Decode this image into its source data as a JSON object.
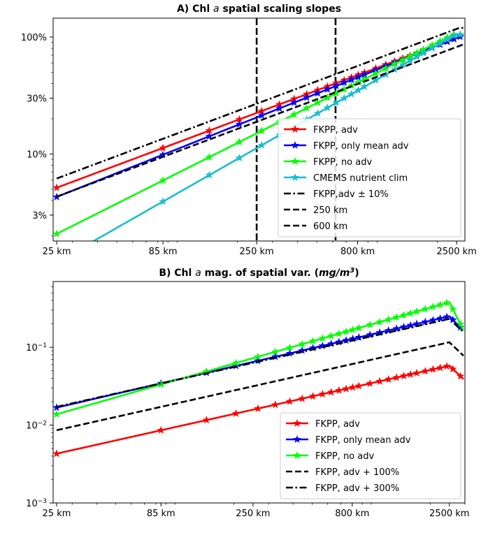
{
  "chart_data": [
    {
      "type": "line",
      "id": "A",
      "title_parts": [
        "A) Chl ",
        "a",
        " spatial scaling slopes"
      ],
      "x_scale": "log",
      "y_scale": "log",
      "xlim": [
        24,
        2750
      ],
      "ylim": [
        0.018,
        1.45
      ],
      "x_ticks": [
        25,
        85,
        250,
        800,
        2500
      ],
      "x_tick_labels": [
        "25 km",
        "85 km",
        "250 km",
        "800 km",
        "2500 km"
      ],
      "y_ticks": [
        0.03,
        0.1,
        0.3,
        1.0
      ],
      "y_tick_labels": [
        "3%",
        "10%",
        "30%",
        "100%"
      ],
      "vlines": [
        {
          "x": 250,
          "color": "#000000",
          "dash": "dashed"
        },
        {
          "x": 620,
          "color": "#000000",
          "dash": "dashed"
        }
      ],
      "series": [
        {
          "name": "FKPP, adv",
          "color": "#ff0000",
          "marker": "star",
          "a": 0.00655,
          "b": 0.64,
          "xmin": 25,
          "xmax": 2700,
          "cap": 1.05
        },
        {
          "name": "FKPP, only mean adv",
          "color": "#0000ff",
          "marker": "star",
          "a": 0.0048,
          "b": 0.68,
          "xmin": 25,
          "xmax": 2700,
          "cap": 1.05
        },
        {
          "name": "FKPP, no adv",
          "color": "#00ff00",
          "marker": "star",
          "a": 0.0013,
          "b": 0.86,
          "xmin": 25,
          "xmax": 2700,
          "cap": 1.05
        },
        {
          "name": "CMEMS nutrient clim",
          "color": "#17becf",
          "marker": "star",
          "a": 0.000515,
          "b": 0.975,
          "xmin": 25,
          "xmax": 2700,
          "cap": 1.05
        },
        {
          "name": "FKPP,adv ± 10%",
          "color": "#000000",
          "marker": "none",
          "dash": "dashdot",
          "a": 0.00785,
          "b": 0.64,
          "xmin": 25,
          "xmax": 2700,
          "cap": 1.2
        },
        {
          "name": "250 km",
          "color": "#000000",
          "marker": "none",
          "dash": "dashed",
          "a": 0.0055,
          "b": 0.64,
          "xmin": 25,
          "xmax": 2700,
          "cap": 0.9
        }
      ],
      "legend": {
        "placement": "lower-right",
        "entries": [
          {
            "label": "FKPP, adv",
            "color": "#ff0000",
            "style": "solid-star"
          },
          {
            "label": "FKPP, only mean adv",
            "color": "#0000ff",
            "style": "solid-star"
          },
          {
            "label": "FKPP, no adv",
            "color": "#00ff00",
            "style": "solid-star"
          },
          {
            "label": "CMEMS nutrient clim",
            "color": "#17becf",
            "style": "solid-star"
          },
          {
            "label": "FKPP,adv ± 10%",
            "color": "#000000",
            "style": "dashdot"
          },
          {
            "label": "250 km",
            "color": "#000000",
            "style": "dashed"
          },
          {
            "label": "600 km",
            "color": "#000000",
            "style": "dashed"
          }
        ]
      }
    },
    {
      "type": "line",
      "id": "B",
      "title_parts": [
        "B) Chl ",
        "a",
        " mag. of spatial var. (",
        "mg/m",
        "3",
        ")"
      ],
      "x_scale": "log",
      "y_scale": "log",
      "xlim": [
        24,
        3000
      ],
      "ylim": [
        0.001,
        0.7
      ],
      "x_ticks": [
        25,
        85,
        250,
        800,
        2500
      ],
      "x_tick_labels": [
        "25 km",
        "85 km",
        "250 km",
        "800 km",
        "2500 km"
      ],
      "y_ticks": [
        0.001,
        0.01,
        0.1
      ],
      "y_tick_labels": [
        [
          "10",
          "−3"
        ],
        [
          "10",
          "−2"
        ],
        [
          "10",
          "−1"
        ]
      ],
      "series": [
        {
          "name": "FKPP, adv",
          "color": "#ff0000",
          "marker": "star",
          "x0": 25,
          "y0": 0.0043,
          "xp": 2500,
          "yp": 0.058,
          "xend": 2950,
          "yend": 0.039
        },
        {
          "name": "FKPP, only mean adv",
          "color": "#0000ff",
          "marker": "star",
          "x0": 25,
          "y0": 0.0168,
          "xp": 2500,
          "yp": 0.25,
          "xend": 2950,
          "yend": 0.165
        },
        {
          "name": "FKPP, no adv",
          "color": "#00ff00",
          "marker": "star",
          "x0": 25,
          "y0": 0.0138,
          "xp": 2500,
          "yp": 0.38,
          "xend": 2950,
          "yend": 0.165
        },
        {
          "name": "FKPP, adv + 100%",
          "color": "#000000",
          "marker": "none",
          "dash": "dashed",
          "x0": 25,
          "y0": 0.0086,
          "xp": 2500,
          "yp": 0.116,
          "xend": 2950,
          "yend": 0.078
        },
        {
          "name": "FKPP, adv + 300%",
          "color": "#000000",
          "marker": "none",
          "dash": "dashdot",
          "x0": 25,
          "y0": 0.0172,
          "xp": 2500,
          "yp": 0.232,
          "xend": 2950,
          "yend": 0.156
        }
      ],
      "legend": {
        "placement": "lower-right",
        "entries": [
          {
            "label": "FKPP, adv",
            "color": "#ff0000",
            "style": "solid-star"
          },
          {
            "label": "FKPP, only mean adv",
            "color": "#0000ff",
            "style": "solid-star"
          },
          {
            "label": "FKPP, no adv",
            "color": "#00ff00",
            "style": "solid-star"
          },
          {
            "label": "FKPP, adv + 100%",
            "color": "#000000",
            "style": "dashed"
          },
          {
            "label": "FKPP, adv + 300%",
            "color": "#000000",
            "style": "dashdot"
          }
        ]
      }
    }
  ]
}
